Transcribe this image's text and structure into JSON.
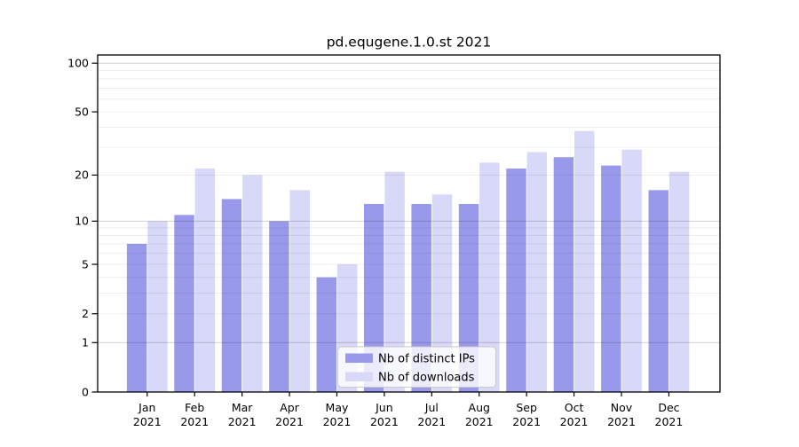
{
  "chart_data": {
    "type": "bar",
    "title": "pd.equgene.1.0.st 2021",
    "scale": "log10(1+v)",
    "ylim": [
      0,
      100
    ],
    "grid": true,
    "legend_position": "inside-bottom-center",
    "year": "2021",
    "categories": [
      "Jan",
      "Feb",
      "Mar",
      "Apr",
      "May",
      "Jun",
      "Jul",
      "Aug",
      "Sep",
      "Oct",
      "Nov",
      "Dec"
    ],
    "series": [
      {
        "name": "Nb of distinct IPs",
        "color": "#9999ec",
        "values": [
          7,
          11,
          14,
          10,
          4,
          13,
          13,
          13,
          22,
          26,
          23,
          16
        ]
      },
      {
        "name": "Nb of downloads",
        "color": "#d8d8f8",
        "values": [
          10,
          22,
          20,
          16,
          5,
          21,
          15,
          24,
          28,
          38,
          29,
          21
        ]
      }
    ],
    "yticks": [
      0,
      1,
      2,
      5,
      10,
      20,
      50,
      100
    ],
    "minor_gridlines": [
      2,
      3,
      4,
      5,
      6,
      7,
      8,
      9,
      20,
      30,
      40,
      50,
      60,
      70,
      80,
      90
    ],
    "major_gridlines": [
      1,
      10,
      100
    ]
  },
  "colors": {
    "background": "#ffffff",
    "axis": "#000000",
    "minor_grid": "rgba(0,0,0,0.07)",
    "major_grid": "rgba(0,0,0,0.18)",
    "text": "#000000"
  }
}
